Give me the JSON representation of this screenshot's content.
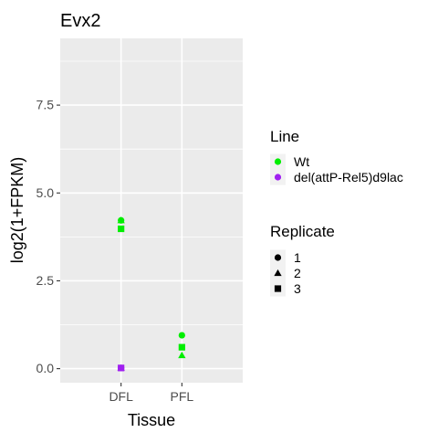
{
  "chart_data": {
    "type": "scatter",
    "title": "Evx2",
    "xlabel": "Tissue",
    "ylabel": "log2(1+FPKM)",
    "categories": [
      "DFL",
      "PFL"
    ],
    "ylim": [
      -0.4,
      9.4
    ],
    "yticks": [
      {
        "value": 0,
        "label": "0.0"
      },
      {
        "value": 2.5,
        "label": "2.5"
      },
      {
        "value": 5,
        "label": "5.0"
      },
      {
        "value": 7.5,
        "label": "7.5"
      }
    ],
    "grid": true,
    "legend_placement": "right",
    "legends": {
      "line": {
        "title": "Line",
        "entries": [
          {
            "label": "Wt",
            "color": "#00ee00"
          },
          {
            "label": "del(attP-Rel5)d9lac",
            "color": "#a020f0"
          }
        ]
      },
      "replicate": {
        "title": "Replicate",
        "entries": [
          {
            "label": "1",
            "shape": "circle"
          },
          {
            "label": "2",
            "shape": "triangle"
          },
          {
            "label": "3",
            "shape": "square"
          }
        ]
      }
    },
    "points": [
      {
        "x": "DFL",
        "y": 4.22,
        "line": "Wt",
        "replicate": "1"
      },
      {
        "x": "DFL",
        "y": 4.22,
        "line": "Wt",
        "replicate": "2"
      },
      {
        "x": "DFL",
        "y": 3.98,
        "line": "Wt",
        "replicate": "3"
      },
      {
        "x": "DFL",
        "y": 0.02,
        "line": "del(attP-Rel5)d9lac",
        "replicate": "1"
      },
      {
        "x": "DFL",
        "y": 0.02,
        "line": "del(attP-Rel5)d9lac",
        "replicate": "2"
      },
      {
        "x": "DFL",
        "y": 0.02,
        "line": "del(attP-Rel5)d9lac",
        "replicate": "3"
      },
      {
        "x": "PFL",
        "y": 0.95,
        "line": "Wt",
        "replicate": "1"
      },
      {
        "x": "PFL",
        "y": 0.38,
        "line": "Wt",
        "replicate": "2"
      },
      {
        "x": "PFL",
        "y": 0.61,
        "line": "Wt",
        "replicate": "3"
      }
    ]
  }
}
